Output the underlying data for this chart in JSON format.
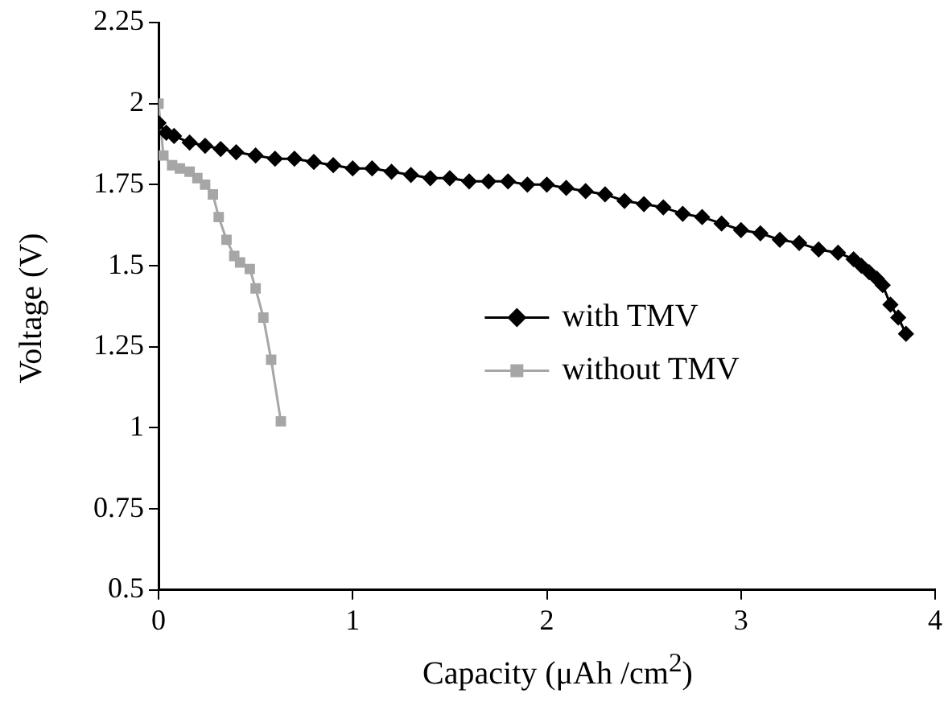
{
  "chart_data": {
    "type": "line",
    "xlabel": "Capacity (μAh /cm$^{2}$)",
    "ylabel": "Voltage (V)",
    "xlim": [
      0,
      4
    ],
    "xticks": [
      0,
      1,
      2,
      3,
      4
    ],
    "ylim": [
      0.5,
      2.25
    ],
    "yticks": [
      0.5,
      0.75,
      1,
      1.25,
      1.5,
      1.75,
      2,
      2.25
    ],
    "grid": false,
    "legend": "right",
    "series": [
      {
        "name": "with TMV",
        "color": "#000000",
        "marker": "diamond",
        "x": [
          0,
          0.04,
          0.08,
          0.16,
          0.24,
          0.32,
          0.4,
          0.5,
          0.6,
          0.7,
          0.8,
          0.9,
          1.0,
          1.1,
          1.2,
          1.3,
          1.4,
          1.5,
          1.6,
          1.7,
          1.8,
          1.9,
          2.0,
          2.1,
          2.2,
          2.3,
          2.4,
          2.5,
          2.6,
          2.7,
          2.8,
          2.9,
          3.0,
          3.1,
          3.2,
          3.3,
          3.4,
          3.5,
          3.58,
          3.62,
          3.66,
          3.7,
          3.73,
          3.77,
          3.81,
          3.85
        ],
        "values": [
          1.94,
          1.91,
          1.9,
          1.88,
          1.87,
          1.86,
          1.85,
          1.84,
          1.83,
          1.83,
          1.82,
          1.81,
          1.8,
          1.8,
          1.79,
          1.78,
          1.77,
          1.77,
          1.76,
          1.76,
          1.76,
          1.75,
          1.75,
          1.74,
          1.73,
          1.72,
          1.7,
          1.69,
          1.68,
          1.66,
          1.65,
          1.63,
          1.61,
          1.6,
          1.58,
          1.57,
          1.55,
          1.54,
          1.52,
          1.5,
          1.48,
          1.46,
          1.44,
          1.38,
          1.34,
          1.29
        ]
      },
      {
        "name": "without TMV",
        "color": "#a6a6a6",
        "marker": "square",
        "x": [
          0,
          0.025,
          0.07,
          0.11,
          0.16,
          0.2,
          0.24,
          0.28,
          0.31,
          0.35,
          0.39,
          0.42,
          0.47,
          0.5,
          0.54,
          0.58,
          0.63
        ],
        "values": [
          2.0,
          1.84,
          1.81,
          1.8,
          1.79,
          1.77,
          1.75,
          1.72,
          1.65,
          1.58,
          1.53,
          1.51,
          1.49,
          1.43,
          1.34,
          1.21,
          1.02
        ]
      }
    ]
  }
}
